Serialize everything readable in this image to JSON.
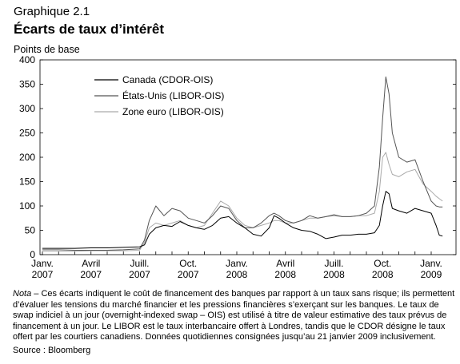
{
  "figure": {
    "label": "Graphique 2.1",
    "title": "Écarts de taux d’intérêt",
    "y_unit": "Points de base",
    "note_lead": "Nota",
    "note_text": " – Ces écarts indiquent le coût de financement des banques par rapport à un taux sans risque; ils permettent d’évaluer les tensions du marché financier et les pressions financières s’exerçant sur les banques. Le taux de swap indiciel à un jour (overnight-indexed swap – OIS) est utilisé à titre de valeur estimative des taux prévus de financement à un jour. Le LIBOR est le taux interbancaire offert à Londres, tandis que le CDOR désigne le taux offert par les courtiers canadiens. Données quotidiennes consignées jusqu’au 21 janvier 2009 inclusivement.",
    "source": "Source : Bloomberg"
  },
  "chart_data": {
    "type": "line",
    "x_unit": "months since Jan. 2007",
    "x_ticks": [
      {
        "x": 0,
        "line1": "Janv.",
        "line2": "2007"
      },
      {
        "x": 3,
        "line1": "Avril",
        "line2": "2007"
      },
      {
        "x": 6,
        "line1": "Juill.",
        "line2": "2007"
      },
      {
        "x": 9,
        "line1": "Oct.",
        "line2": "2007"
      },
      {
        "x": 12,
        "line1": "Janv.",
        "line2": "2008"
      },
      {
        "x": 15,
        "line1": "Avril",
        "line2": "2008"
      },
      {
        "x": 18,
        "line1": "Juill.",
        "line2": "2008"
      },
      {
        "x": 21,
        "line1": "Oct.",
        "line2": "2008"
      },
      {
        "x": 24,
        "line1": "Janv.",
        "line2": "2009"
      }
    ],
    "xlim": [
      0,
      24.7
    ],
    "ylim": [
      0,
      400
    ],
    "y_ticks": [
      0,
      50,
      100,
      150,
      200,
      250,
      300,
      350,
      400
    ],
    "legend_position": "top-left",
    "series": [
      {
        "name": "Canada (CDOR-OIS)",
        "color": "#000000",
        "points": [
          [
            0,
            13
          ],
          [
            1,
            13
          ],
          [
            2,
            13
          ],
          [
            3,
            14
          ],
          [
            4,
            14
          ],
          [
            5,
            15
          ],
          [
            6,
            16
          ],
          [
            6.3,
            20
          ],
          [
            6.6,
            42
          ],
          [
            7,
            55
          ],
          [
            7.5,
            60
          ],
          [
            8,
            58
          ],
          [
            8.5,
            68
          ],
          [
            9,
            60
          ],
          [
            9.5,
            55
          ],
          [
            10,
            52
          ],
          [
            10.5,
            60
          ],
          [
            11,
            75
          ],
          [
            11.5,
            78
          ],
          [
            12,
            65
          ],
          [
            12.5,
            55
          ],
          [
            13,
            42
          ],
          [
            13.5,
            38
          ],
          [
            14,
            55
          ],
          [
            14.3,
            80
          ],
          [
            14.6,
            75
          ],
          [
            15,
            65
          ],
          [
            15.5,
            55
          ],
          [
            16,
            50
          ],
          [
            16.5,
            48
          ],
          [
            17,
            42
          ],
          [
            17.5,
            33
          ],
          [
            18,
            36
          ],
          [
            18.5,
            40
          ],
          [
            19,
            40
          ],
          [
            19.5,
            42
          ],
          [
            20,
            42
          ],
          [
            20.5,
            45
          ],
          [
            20.8,
            60
          ],
          [
            21,
            100
          ],
          [
            21.2,
            130
          ],
          [
            21.4,
            125
          ],
          [
            21.6,
            95
          ],
          [
            22,
            90
          ],
          [
            22.5,
            85
          ],
          [
            23,
            95
          ],
          [
            23.5,
            90
          ],
          [
            24,
            85
          ],
          [
            24.3,
            60
          ],
          [
            24.5,
            40
          ],
          [
            24.7,
            38
          ]
        ]
      },
      {
        "name": "États-Unis (LIBOR-OIS)",
        "color": "#555555",
        "points": [
          [
            0,
            10
          ],
          [
            1,
            10
          ],
          [
            2,
            9
          ],
          [
            3,
            9
          ],
          [
            4,
            9
          ],
          [
            5,
            10
          ],
          [
            6,
            12
          ],
          [
            6.3,
            30
          ],
          [
            6.6,
            70
          ],
          [
            7,
            100
          ],
          [
            7.5,
            80
          ],
          [
            8,
            95
          ],
          [
            8.5,
            90
          ],
          [
            9,
            75
          ],
          [
            9.5,
            70
          ],
          [
            10,
            65
          ],
          [
            10.5,
            80
          ],
          [
            11,
            100
          ],
          [
            11.5,
            95
          ],
          [
            12,
            70
          ],
          [
            12.5,
            55
          ],
          [
            13,
            55
          ],
          [
            13.5,
            65
          ],
          [
            14,
            80
          ],
          [
            14.3,
            85
          ],
          [
            14.6,
            80
          ],
          [
            15,
            70
          ],
          [
            15.5,
            65
          ],
          [
            16,
            70
          ],
          [
            16.5,
            80
          ],
          [
            17,
            75
          ],
          [
            17.5,
            78
          ],
          [
            18,
            82
          ],
          [
            18.5,
            78
          ],
          [
            19,
            78
          ],
          [
            19.5,
            80
          ],
          [
            20,
            85
          ],
          [
            20.5,
            100
          ],
          [
            20.8,
            180
          ],
          [
            21,
            280
          ],
          [
            21.2,
            365
          ],
          [
            21.4,
            330
          ],
          [
            21.6,
            250
          ],
          [
            22,
            200
          ],
          [
            22.5,
            190
          ],
          [
            23,
            195
          ],
          [
            23.5,
            150
          ],
          [
            24,
            110
          ],
          [
            24.3,
            100
          ],
          [
            24.5,
            98
          ],
          [
            24.7,
            98
          ]
        ]
      },
      {
        "name": "Zone euro (LIBOR-OIS)",
        "color": "#aaaaaa",
        "points": [
          [
            0,
            7
          ],
          [
            1,
            7
          ],
          [
            2,
            7
          ],
          [
            3,
            8
          ],
          [
            4,
            8
          ],
          [
            5,
            8
          ],
          [
            6,
            9
          ],
          [
            6.3,
            25
          ],
          [
            6.6,
            55
          ],
          [
            7,
            65
          ],
          [
            7.5,
            60
          ],
          [
            8,
            65
          ],
          [
            8.5,
            70
          ],
          [
            9,
            60
          ],
          [
            9.5,
            55
          ],
          [
            10,
            60
          ],
          [
            10.5,
            85
          ],
          [
            11,
            110
          ],
          [
            11.5,
            100
          ],
          [
            12,
            75
          ],
          [
            12.5,
            60
          ],
          [
            13,
            55
          ],
          [
            13.5,
            60
          ],
          [
            14,
            65
          ],
          [
            14.3,
            70
          ],
          [
            14.6,
            70
          ],
          [
            15,
            65
          ],
          [
            15.5,
            65
          ],
          [
            16,
            70
          ],
          [
            16.5,
            75
          ],
          [
            17,
            75
          ],
          [
            17.5,
            78
          ],
          [
            18,
            80
          ],
          [
            18.5,
            78
          ],
          [
            19,
            78
          ],
          [
            19.5,
            80
          ],
          [
            20,
            80
          ],
          [
            20.5,
            85
          ],
          [
            20.8,
            130
          ],
          [
            21,
            200
          ],
          [
            21.2,
            210
          ],
          [
            21.4,
            185
          ],
          [
            21.6,
            165
          ],
          [
            22,
            160
          ],
          [
            22.5,
            170
          ],
          [
            23,
            175
          ],
          [
            23.5,
            145
          ],
          [
            24,
            130
          ],
          [
            24.3,
            120
          ],
          [
            24.5,
            115
          ],
          [
            24.7,
            110
          ]
        ]
      }
    ]
  }
}
